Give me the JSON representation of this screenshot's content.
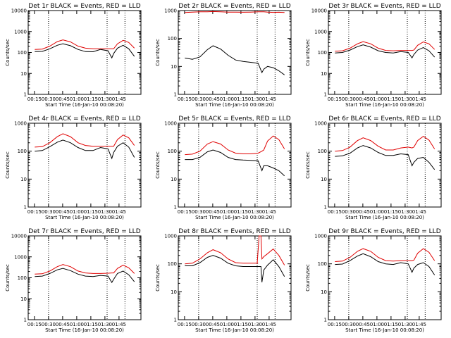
{
  "chart_data": [
    {
      "type": "line",
      "title": "Det 1r BLACK = Events, RED = LLD",
      "xlabel": "Start Time (16-Jan-10 00:08:20)",
      "ylabel": "Counts/sec",
      "yscale": "log",
      "ylim": [
        1,
        10000
      ],
      "yticks": [
        "1",
        "10",
        "100",
        "1000",
        "10000"
      ],
      "xticks": [
        "00:15",
        "00:30",
        "00:45",
        "01:00",
        "01:15",
        "01:30",
        "01:45"
      ],
      "x_minutes": [
        7,
        15,
        23,
        31,
        37,
        45,
        53,
        61,
        69,
        77,
        85,
        89,
        91,
        95,
        101,
        107,
        113
      ],
      "series": [
        {
          "name": "Events",
          "color": "#000000",
          "values": [
            110,
            112,
            150,
            220,
            260,
            210,
            140,
            110,
            108,
            140,
            120,
            55,
            90,
            160,
            220,
            150,
            65
          ]
        },
        {
          "name": "LLD",
          "color": "#e00000",
          "values": [
            140,
            145,
            200,
            330,
            400,
            320,
            200,
            160,
            150,
            150,
            150,
            150,
            150,
            260,
            380,
            300,
            160
          ]
        }
      ]
    },
    {
      "type": "line",
      "title": "Det 2r BLACK = Events, RED = LLD",
      "xlabel": "Start Time (16-Jan-10 00:08:20)",
      "ylabel": "Counts/sec",
      "yscale": "log",
      "ylim": [
        1,
        1000
      ],
      "yticks": [
        "1",
        "10",
        "100",
        "1000"
      ],
      "xticks": [
        "00:15",
        "00:30",
        "00:45",
        "01:00",
        "01:15",
        "01:30",
        "01:45"
      ],
      "x_minutes": [
        7,
        15,
        23,
        31,
        37,
        45,
        53,
        61,
        69,
        77,
        85,
        89,
        91,
        95,
        101,
        107,
        113
      ],
      "series": [
        {
          "name": "Events",
          "color": "#000000",
          "values": [
            20,
            18,
            22,
            40,
            55,
            42,
            25,
            17,
            15,
            14,
            13,
            6,
            8,
            10,
            9,
            7,
            5
          ]
        },
        {
          "name": "LLD",
          "color": "#e00000",
          "values": [
            850,
            880,
            900,
            900,
            920,
            900,
            880,
            880,
            870,
            880,
            900,
            900,
            900,
            880,
            860,
            870,
            850
          ]
        }
      ]
    },
    {
      "type": "line",
      "title": "Det 3r BLACK = Events, RED = LLD",
      "xlabel": "Start Time (16-Jan-10 00:08:20)",
      "ylabel": "Counts/sec",
      "yscale": "log",
      "ylim": [
        1,
        10000
      ],
      "yticks": [
        "1",
        "10",
        "100",
        "1000",
        "10000"
      ],
      "xticks": [
        "00:15",
        "00:30",
        "00:45",
        "01:00",
        "01:15",
        "01:30",
        "01:45"
      ],
      "x_minutes": [
        7,
        15,
        23,
        31,
        37,
        45,
        53,
        61,
        69,
        77,
        85,
        89,
        91,
        95,
        101,
        107,
        113
      ],
      "series": [
        {
          "name": "Events",
          "color": "#000000",
          "values": [
            95,
            100,
            130,
            190,
            230,
            180,
            120,
            100,
            95,
            110,
            100,
            55,
            80,
            130,
            170,
            120,
            60
          ]
        },
        {
          "name": "LLD",
          "color": "#e00000",
          "values": [
            115,
            120,
            160,
            260,
            330,
            260,
            160,
            125,
            120,
            125,
            125,
            125,
            130,
            220,
            320,
            260,
            140
          ]
        }
      ]
    },
    {
      "type": "line",
      "title": "Det 4r BLACK = Events, RED = LLD",
      "xlabel": "Start Time (16-Jan-10 00:08:20)",
      "ylabel": "Counts/sec",
      "yscale": "log",
      "ylim": [
        1,
        1000
      ],
      "yticks": [
        "1",
        "10",
        "100",
        "1000"
      ],
      "xticks": [
        "00:15",
        "00:30",
        "00:45",
        "01:00",
        "01:15",
        "01:30",
        "01:45"
      ],
      "x_minutes": [
        7,
        15,
        23,
        31,
        37,
        45,
        53,
        61,
        69,
        77,
        85,
        89,
        91,
        95,
        101,
        107,
        113
      ],
      "series": [
        {
          "name": "Events",
          "color": "#000000",
          "values": [
            100,
            105,
            145,
            210,
            250,
            200,
            135,
            105,
            105,
            135,
            120,
            55,
            90,
            150,
            200,
            140,
            60
          ]
        },
        {
          "name": "LLD",
          "color": "#e00000",
          "values": [
            140,
            145,
            200,
            330,
            420,
            330,
            200,
            160,
            150,
            150,
            150,
            150,
            150,
            260,
            380,
            300,
            160
          ]
        }
      ]
    },
    {
      "type": "line",
      "title": "Det 5r BLACK = Events, RED = LLD",
      "xlabel": "Start Time (16-Jan-10 00:08:20)",
      "ylabel": "Counts/sec",
      "yscale": "log",
      "ylim": [
        1,
        1000
      ],
      "yticks": [
        "1",
        "10",
        "100",
        "1000"
      ],
      "xticks": [
        "00:15",
        "00:30",
        "00:45",
        "01:00",
        "01:15",
        "01:30",
        "01:45"
      ],
      "x_minutes": [
        7,
        15,
        23,
        31,
        37,
        45,
        53,
        61,
        69,
        77,
        85,
        89,
        91,
        95,
        101,
        107,
        113
      ],
      "series": [
        {
          "name": "Events",
          "color": "#000000",
          "values": [
            50,
            50,
            60,
            95,
            110,
            90,
            60,
            50,
            48,
            47,
            45,
            20,
            30,
            30,
            25,
            20,
            13
          ]
        },
        {
          "name": "LLD",
          "color": "#e00000",
          "values": [
            75,
            78,
            100,
            180,
            220,
            180,
            110,
            85,
            80,
            80,
            85,
            100,
            110,
            230,
            350,
            260,
            120
          ]
        }
      ]
    },
    {
      "type": "line",
      "title": "Det 6r BLACK = Events, RED = LLD",
      "xlabel": "Start Time (16-Jan-10 00:08:20)",
      "ylabel": "Counts/sec",
      "yscale": "log",
      "ylim": [
        1,
        1000
      ],
      "yticks": [
        "1",
        "10",
        "100",
        "1000"
      ],
      "xticks": [
        "00:15",
        "00:30",
        "00:45",
        "01:00",
        "01:15",
        "01:30",
        "01:45"
      ],
      "x_minutes": [
        7,
        15,
        23,
        31,
        37,
        45,
        53,
        61,
        69,
        77,
        85,
        89,
        91,
        95,
        101,
        107,
        113
      ],
      "series": [
        {
          "name": "Events",
          "color": "#000000",
          "values": [
            65,
            68,
            85,
            130,
            160,
            130,
            90,
            70,
            70,
            80,
            75,
            30,
            40,
            55,
            60,
            40,
            22
          ]
        },
        {
          "name": "LLD",
          "color": "#e00000",
          "values": [
            100,
            105,
            140,
            240,
            300,
            240,
            150,
            110,
            110,
            130,
            140,
            130,
            140,
            240,
            340,
            250,
            120
          ]
        }
      ]
    },
    {
      "type": "line",
      "title": "Det 7r BLACK = Events, RED = LLD",
      "xlabel": "Start Time (16-Jan-10 00:08:20)",
      "ylabel": "Counts/sec",
      "yscale": "log",
      "ylim": [
        1,
        10000
      ],
      "yticks": [
        "1",
        "10",
        "100",
        "1000",
        "10000"
      ],
      "xticks": [
        "00:15",
        "00:30",
        "00:45",
        "01:00",
        "01:15",
        "01:30",
        "01:45"
      ],
      "x_minutes": [
        7,
        15,
        23,
        31,
        37,
        45,
        53,
        61,
        69,
        77,
        85,
        89,
        91,
        95,
        101,
        107,
        113
      ],
      "series": [
        {
          "name": "Events",
          "color": "#000000",
          "values": [
            115,
            120,
            160,
            240,
            280,
            220,
            150,
            120,
            115,
            130,
            120,
            60,
            85,
            160,
            210,
            140,
            65
          ]
        },
        {
          "name": "LLD",
          "color": "#e00000",
          "values": [
            150,
            155,
            210,
            340,
            430,
            340,
            210,
            170,
            160,
            160,
            165,
            170,
            170,
            280,
            400,
            300,
            160
          ]
        }
      ]
    },
    {
      "type": "line",
      "title": "Det 8r BLACK = Events, RED = LLD",
      "xlabel": "Start Time (16-Jan-10 00:08:20)",
      "ylabel": "Counts/sec",
      "yscale": "log",
      "ylim": [
        1,
        1000
      ],
      "yticks": [
        "1",
        "10",
        "100",
        "1000"
      ],
      "xticks": [
        "00:15",
        "00:30",
        "00:45",
        "01:00",
        "01:15",
        "01:30",
        "01:45"
      ],
      "x_minutes": [
        7,
        15,
        23,
        31,
        37,
        45,
        53,
        61,
        69,
        77,
        85,
        84,
        86,
        88,
        89,
        91,
        95,
        101,
        107,
        113
      ],
      "series": [
        {
          "name": "Events",
          "color": "#000000",
          "values": [
            85,
            85,
            110,
            170,
            200,
            160,
            105,
            85,
            80,
            80,
            80,
            80,
            80,
            80,
            22,
            60,
            90,
            140,
            80,
            35
          ]
        },
        {
          "name": "LLD",
          "color": "#e00000",
          "values": [
            100,
            105,
            150,
            250,
            320,
            250,
            150,
            110,
            105,
            105,
            105,
            105,
            1000,
            1000,
            150,
            180,
            230,
            340,
            200,
            90
          ]
        }
      ]
    },
    {
      "type": "line",
      "title": "Det 9r BLACK = Events, RED = LLD",
      "xlabel": "Start Time (16-Jan-10 00:08:20)",
      "ylabel": "Counts/sec",
      "yscale": "log",
      "ylim": [
        1,
        1000
      ],
      "yticks": [
        "1",
        "10",
        "100",
        "1000"
      ],
      "xticks": [
        "00:15",
        "00:30",
        "00:45",
        "01:00",
        "01:15",
        "01:30",
        "01:45"
      ],
      "x_minutes": [
        7,
        15,
        23,
        31,
        37,
        45,
        53,
        61,
        69,
        77,
        85,
        89,
        91,
        95,
        101,
        107,
        113
      ],
      "series": [
        {
          "name": "Events",
          "color": "#000000",
          "values": [
            95,
            98,
            130,
            190,
            230,
            180,
            120,
            100,
            95,
            110,
            100,
            50,
            70,
            95,
            110,
            80,
            40
          ]
        },
        {
          "name": "LLD",
          "color": "#e00000",
          "values": [
            120,
            125,
            170,
            280,
            350,
            280,
            170,
            130,
            125,
            130,
            130,
            130,
            135,
            240,
            350,
            260,
            130
          ]
        }
      ]
    }
  ]
}
